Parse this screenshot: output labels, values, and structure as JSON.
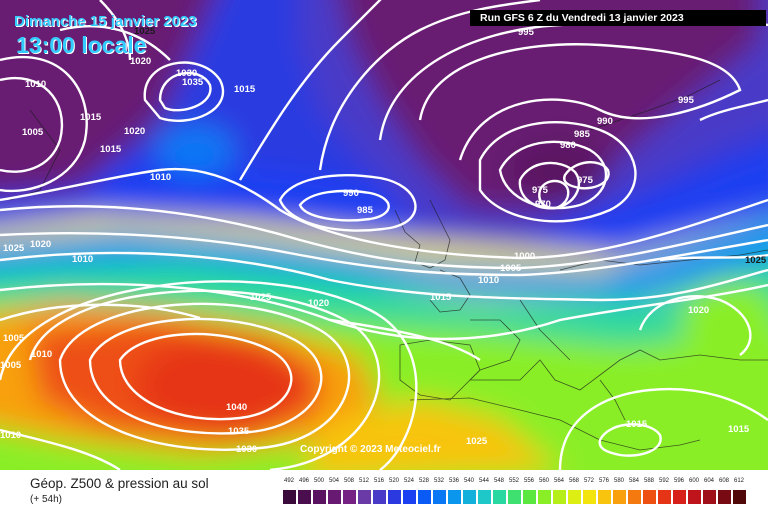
{
  "header": {
    "date": "Dimanche 15 janvier 2023",
    "local_time": "13:00 locale",
    "run": "Run GFS 6 Z du Vendredi 13 janvier 2023"
  },
  "footer": {
    "title": "Géop. Z500 & pression au sol",
    "lead_time": "(+ 54h)",
    "copyright": "Copyright © 2023 Meteociel.fr"
  },
  "scale": {
    "ticks": [
      "492",
      "496",
      "500",
      "504",
      "508",
      "512",
      "516",
      "520",
      "524",
      "528",
      "532",
      "536",
      "540",
      "544",
      "548",
      "552",
      "556",
      "560",
      "564",
      "568",
      "572",
      "576",
      "580",
      "584",
      "588",
      "592",
      "596",
      "600",
      "604",
      "608",
      "612"
    ],
    "colors": [
      "#3a0a3a",
      "#4a0d4d",
      "#5a1360",
      "#681a72",
      "#762184",
      "#6a3aa6",
      "#4a3ac8",
      "#2a3ae0",
      "#1a40f2",
      "#0a5af5",
      "#0a78f5",
      "#0a96ec",
      "#14b0dc",
      "#1ec8c8",
      "#28d8a0",
      "#3ee070",
      "#5ae840",
      "#8aee26",
      "#b6ee1a",
      "#dcee12",
      "#f4e40e",
      "#f8c40e",
      "#f8a00e",
      "#f47a10",
      "#ee5012",
      "#e63416",
      "#d8201a",
      "#c0141c",
      "#a0101a",
      "#780a14",
      "#500808"
    ]
  },
  "isobars": [
    "1025",
    "1020",
    "1030",
    "1035",
    "1015",
    "1010",
    "1005",
    "1020",
    "1015",
    "1010",
    "1015",
    "1020",
    "1025",
    "1010",
    "990",
    "985",
    "995",
    "995",
    "990",
    "985",
    "980",
    "975",
    "975",
    "970",
    "1005",
    "1000",
    "1010",
    "1015",
    "1025",
    "1020",
    "1025",
    "1020",
    "1005",
    "1010",
    "1040",
    "1035",
    "1030",
    "1025",
    "1015",
    "1015",
    "1010",
    "1005"
  ],
  "colors": {
    "date_text": "#33ccff",
    "run_banner": "#000000",
    "isobar": "#ffffff"
  }
}
